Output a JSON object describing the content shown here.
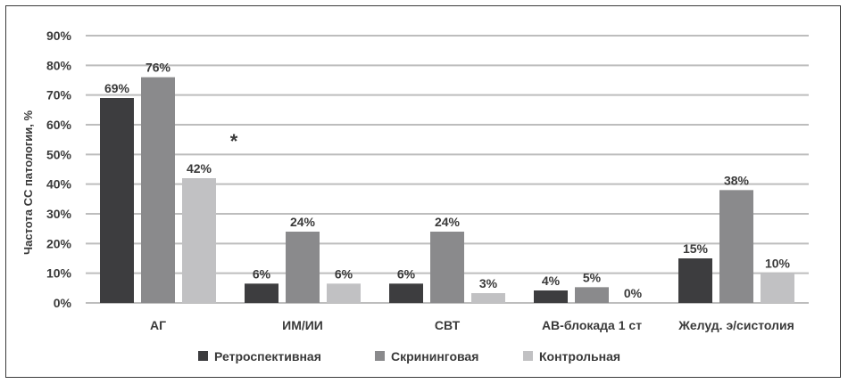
{
  "chart_data": {
    "type": "bar",
    "title": "",
    "xlabel": "",
    "ylabel": "Частота СС патологии, %",
    "ylim": [
      0,
      90
    ],
    "yticks": [
      0,
      10,
      20,
      30,
      40,
      50,
      60,
      70,
      80,
      90
    ],
    "ytick_labels": [
      "0%",
      "10%",
      "20%",
      "30%",
      "40%",
      "50%",
      "60%",
      "70%",
      "80%",
      "90%"
    ],
    "grid": true,
    "legend_position": "bottom",
    "categories": [
      "АГ",
      "ИМ/ИИ",
      "СВТ",
      "АВ-блокада 1 ст",
      "Желуд. э/систолия"
    ],
    "series": [
      {
        "name": "Ретроспективная",
        "color": "#3d3d3f",
        "values": [
          69,
          6.5,
          6.5,
          4.2,
          15
        ],
        "labels": [
          "69%",
          "6%",
          "6%",
          "4%",
          "15%"
        ]
      },
      {
        "name": "Скрининговая",
        "color": "#8a8a8c",
        "values": [
          76,
          24,
          24,
          5.3,
          38
        ],
        "labels": [
          "76%",
          "24%",
          "24%",
          "5%",
          "38%"
        ]
      },
      {
        "name": "Контрольная",
        "color": "#c1c1c3",
        "values": [
          42,
          6.5,
          3.3,
          0,
          10
        ],
        "labels": [
          "42%",
          "6%",
          "3%",
          "0%",
          "10%"
        ]
      }
    ],
    "annotations": [
      {
        "text": "*",
        "near_category": "АГ"
      }
    ]
  }
}
